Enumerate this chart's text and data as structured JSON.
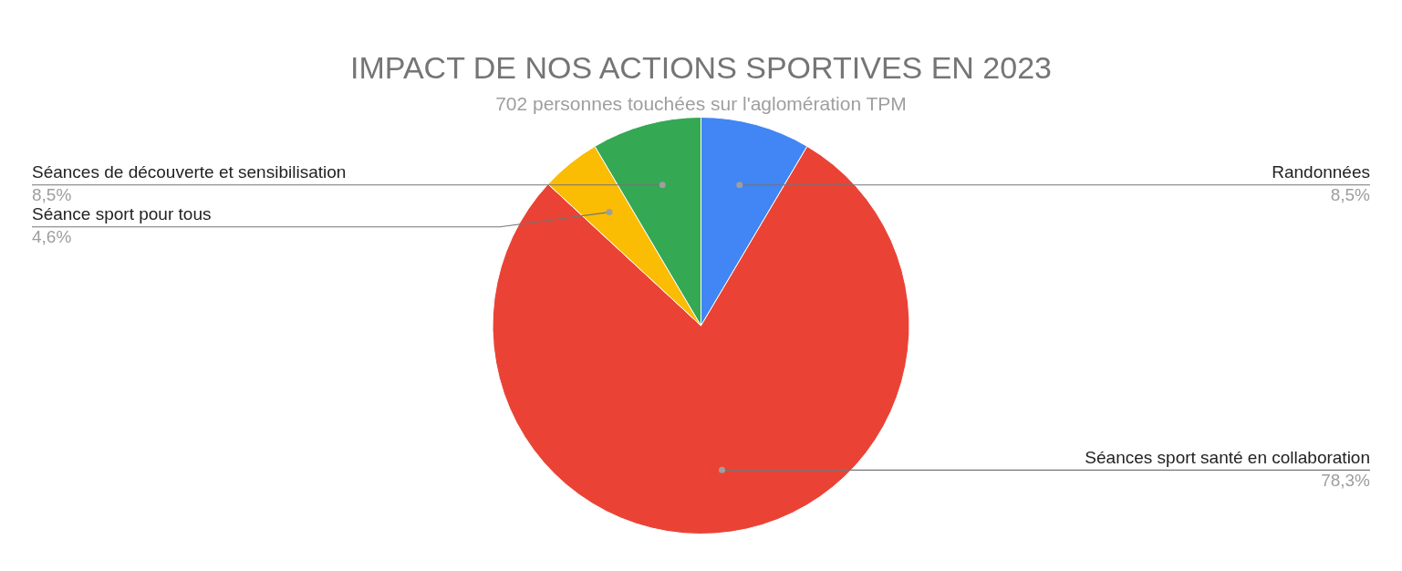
{
  "chart_data": {
    "type": "pie",
    "title": "IMPACT DE NOS ACTIONS SPORTIVES EN 2023",
    "subtitle": "702 personnes touchées sur l'aglomération TPM",
    "categories": [
      "Randonnées",
      "Séances sport santé en collaboration",
      "Séance sport pour tous",
      "Séances de découverte et sensibilisation"
    ],
    "values": [
      8.5,
      78.3,
      4.6,
      8.5
    ],
    "value_labels": [
      "8,5%",
      "78,3%",
      "4,6%",
      "8,5%"
    ],
    "colors": [
      "#4285f4",
      "#ea4335",
      "#fbbc04",
      "#34a853"
    ],
    "legend": false
  }
}
